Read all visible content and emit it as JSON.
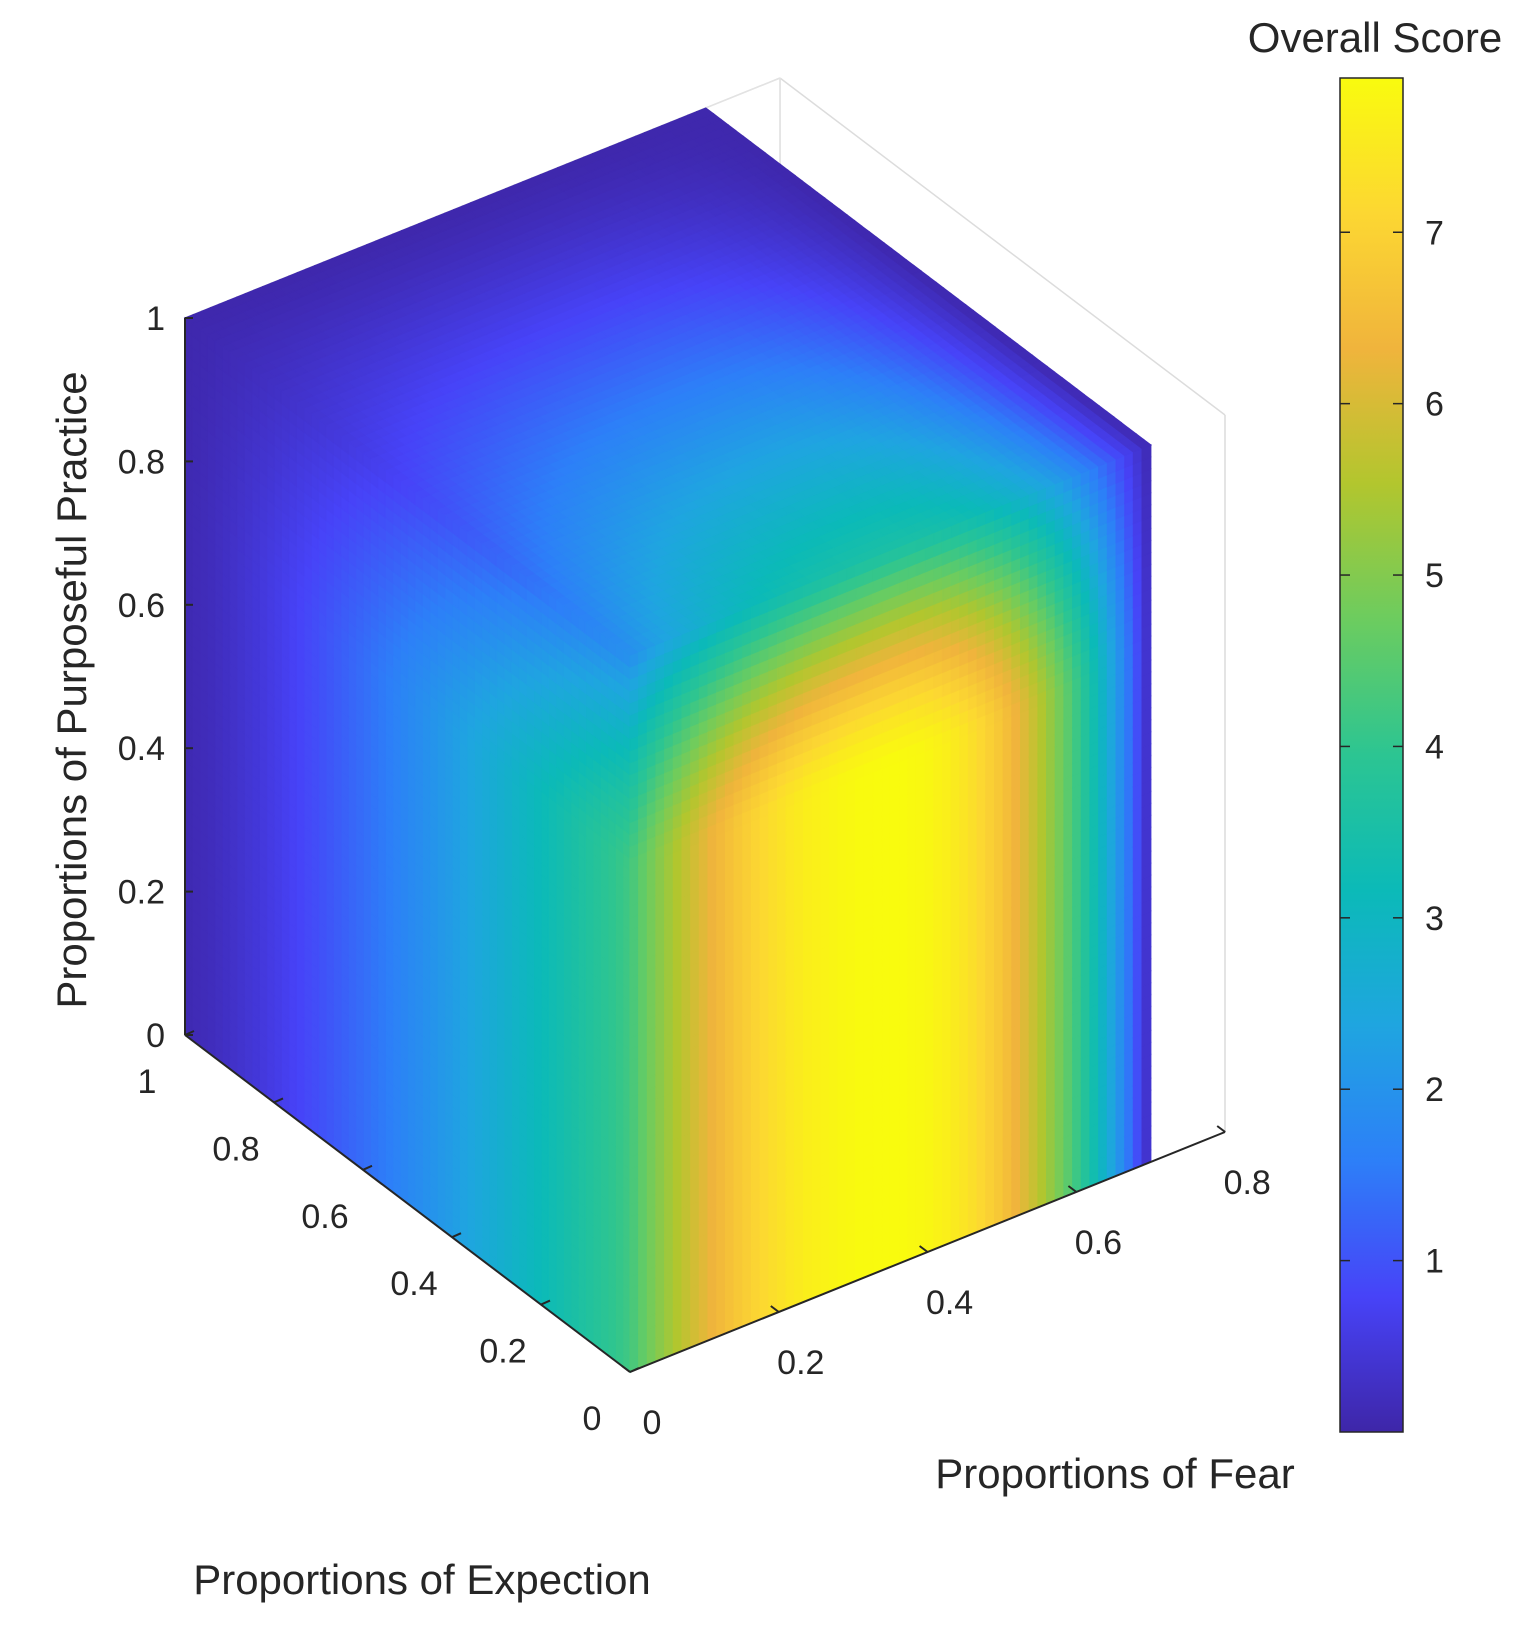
{
  "chart_data": {
    "type": "heatmap",
    "subtype": "3d-volume-slice",
    "title": "",
    "axes": {
      "expection": {
        "label": "Proportions of Expection",
        "range": [
          0,
          1
        ],
        "ticks": [
          0,
          0.2,
          0.4,
          0.6,
          0.8,
          1
        ],
        "tick_labels": [
          "0",
          "0.2",
          "0.4",
          "0.6",
          "0.8",
          "1"
        ]
      },
      "fear": {
        "label": "Proportions of Fear",
        "range": [
          0,
          0.8
        ],
        "data_range": [
          0,
          0.7
        ],
        "ticks": [
          0,
          0.2,
          0.4,
          0.6,
          0.8
        ],
        "tick_labels": [
          "0",
          "0.2",
          "0.4",
          "0.6",
          "0.8"
        ]
      },
      "purposeful_practice": {
        "label": "Proportions of Purposeful Practice",
        "range": [
          0,
          1
        ],
        "ticks": [
          0,
          0.2,
          0.4,
          0.6,
          0.8,
          1
        ],
        "tick_labels": [
          "0",
          "0.2",
          "0.4",
          "0.6",
          "0.8",
          "1"
        ]
      }
    },
    "colorbar": {
      "title": "Overall Score",
      "colormap": "parula",
      "range": [
        0,
        7.9
      ],
      "ticks": [
        1,
        2,
        3,
        4,
        5,
        6,
        7
      ],
      "tick_labels": [
        "1",
        "2",
        "3",
        "4",
        "5",
        "6",
        "7"
      ]
    },
    "score_model": {
      "peak_fear": 0.35,
      "peak_expection": 0,
      "peak_purposeful_practice": 0.7,
      "peak_score": 7.9,
      "edge_score_fear0": 4.2,
      "edge_score_fear07": 0.1,
      "edge_score_expection1": 0.1
    },
    "grid": true,
    "colormap_stops": [
      "#3e26a8",
      "#4743f8",
      "#2d7ff8",
      "#1fa5e0",
      "#0bbab8",
      "#2cc592",
      "#6ccc5f",
      "#b2c62e",
      "#f0b43c",
      "#fcd732",
      "#f9fb0e"
    ]
  }
}
